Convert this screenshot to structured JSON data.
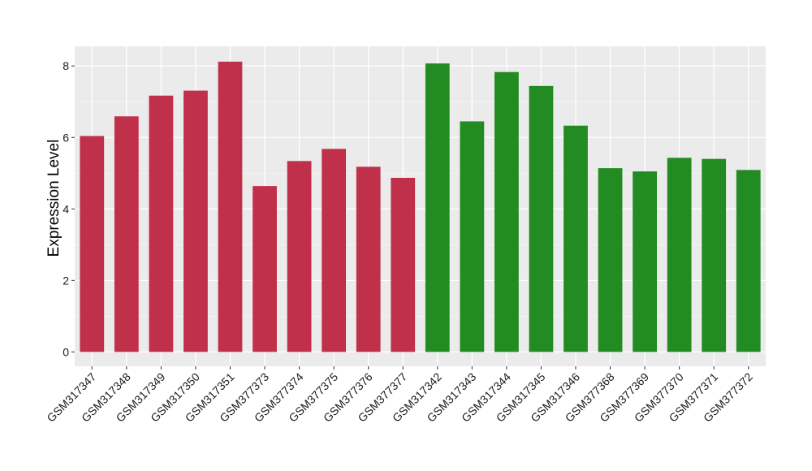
{
  "chart_data": {
    "type": "bar",
    "title": "",
    "xlabel": "",
    "ylabel": "Expression Level",
    "ylim": [
      -0.4,
      8.55
    ],
    "yticks": [
      0,
      2,
      4,
      6,
      8
    ],
    "grid": true,
    "background": "#EBEBEB",
    "categories": [
      "GSM317347",
      "GSM317348",
      "GSM317349",
      "GSM317350",
      "GSM317351",
      "GSM377373",
      "GSM377374",
      "GSM377375",
      "GSM377376",
      "GSM377377",
      "GSM317342",
      "GSM317343",
      "GSM317344",
      "GSM317345",
      "GSM317346",
      "GSM377368",
      "GSM377369",
      "GSM377370",
      "GSM377371",
      "GSM377372"
    ],
    "values": [
      6.04,
      6.59,
      7.17,
      7.31,
      8.12,
      4.64,
      5.34,
      5.68,
      5.18,
      4.87,
      8.07,
      6.45,
      7.83,
      7.44,
      6.33,
      5.14,
      5.05,
      5.43,
      5.4,
      5.09
    ],
    "bar_colors": [
      "#C1304A",
      "#C1304A",
      "#C1304A",
      "#C1304A",
      "#C1304A",
      "#C1304A",
      "#C1304A",
      "#C1304A",
      "#C1304A",
      "#C1304A",
      "#228B22",
      "#228B22",
      "#228B22",
      "#228B22",
      "#228B22",
      "#228B22",
      "#228B22",
      "#228B22",
      "#228B22",
      "#228B22"
    ]
  }
}
